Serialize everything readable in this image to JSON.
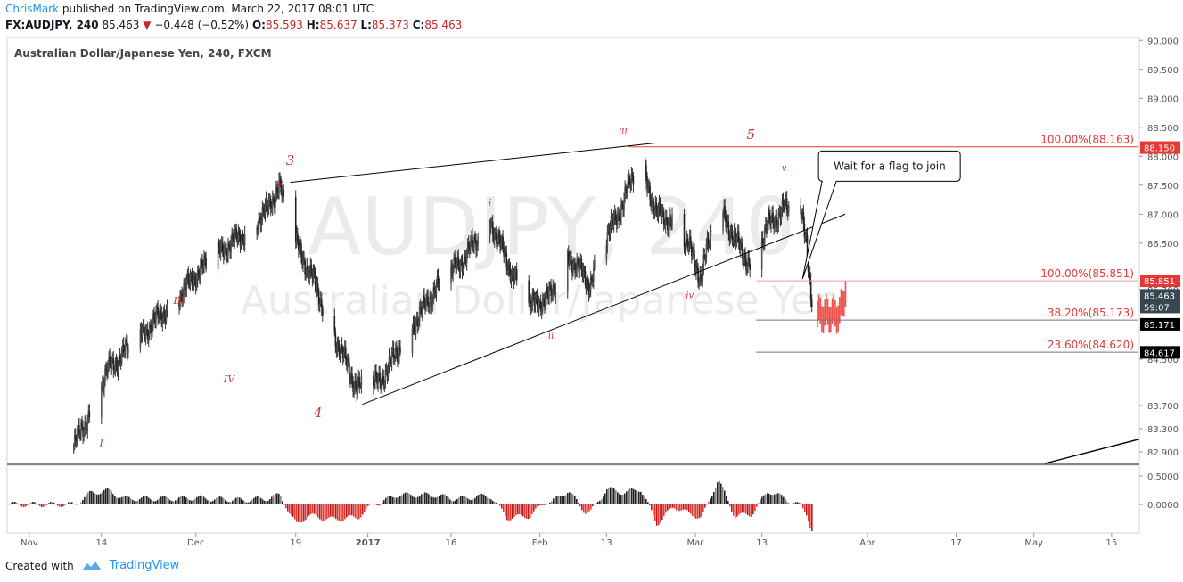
{
  "header": {
    "author": "ChrisMark",
    "published_text": "published on TradingView.com, March 22, 2017 08:01 UTC",
    "symbol": "FX:AUDJPY, 240",
    "last": "85.463",
    "change": "−0.448 (−0.52%)",
    "o_label": "O:",
    "o": "85.593",
    "h_label": "H:",
    "h": "85.637",
    "l_label": "L:",
    "l": "85.373",
    "c_label": "C:",
    "c": "85.463"
  },
  "footer": {
    "created_with": "Created with",
    "brand": "TradingView"
  },
  "chart_data": {
    "type": "candlestick",
    "title": "Australian Dollar/Japanese Yen, 240, FXCM",
    "watermark_symbol": "AUDJPY, 240",
    "watermark_name": "Australian Dollar/Japanese Yen",
    "ylim": [
      82.7,
      90.05
    ],
    "y_ticks": [
      "90.000",
      "89.500",
      "89.000",
      "88.500",
      "88.000",
      "87.500",
      "87.000",
      "86.500",
      "85.700",
      "84.500",
      "83.700",
      "83.300",
      "82.900"
    ],
    "x_ticks": [
      "Nov",
      "14",
      "Dec",
      "19",
      "2017",
      "16",
      "Feb",
      "13",
      "Mar",
      "13",
      "Apr",
      "17",
      "May",
      "15"
    ],
    "price_badges": [
      {
        "value": "88.150",
        "color": "#e53935"
      },
      {
        "value": "85.851",
        "color": "#e53935"
      },
      {
        "value": "85.463",
        "color": "#37474f"
      },
      {
        "value": "59:07",
        "color": "#37474f"
      },
      {
        "value": "85.171",
        "color": "#000000"
      },
      {
        "value": "84.617",
        "color": "#000000"
      }
    ],
    "fib_levels": [
      {
        "label": "100.00%(88.163)",
        "value": 88.163,
        "color": "#e53935"
      },
      {
        "label": "100.00%(85.851)",
        "value": 85.851,
        "color": "#ef9a9a"
      },
      {
        "label": "38.20%(85.173)",
        "value": 85.173,
        "color": "#757575"
      },
      {
        "label": "23.60%(84.620)",
        "value": 84.62,
        "color": "#757575"
      }
    ],
    "wave_labels": [
      {
        "text": "I",
        "x": "Nov 14",
        "y": 83.0
      },
      {
        "text": "III",
        "x": "Nov 28",
        "y": 85.45
      },
      {
        "text": "IV",
        "x": "Dec 7",
        "y": 84.1
      },
      {
        "text": "V",
        "x": "Dec 16",
        "y": 87.45
      },
      {
        "text": "3",
        "x": "Dec 18",
        "y": 87.85
      },
      {
        "text": "4",
        "x": "Dec 23",
        "y": 83.5
      },
      {
        "text": "i",
        "x": "Jan 23",
        "y": 87.15
      },
      {
        "text": "ii",
        "x": "Feb 3",
        "y": 84.85
      },
      {
        "text": "iii",
        "x": "Feb 16",
        "y": 88.4
      },
      {
        "text": "iv",
        "x": "Feb 28",
        "y": 85.55
      },
      {
        "text": "5",
        "x": "Mar 11",
        "y": 88.3
      },
      {
        "text": "v",
        "x": "Mar 17",
        "y": 87.75
      }
    ],
    "annotation": "Wait for a flag to join",
    "osc_ticks": [
      "0.5000",
      "0.0000"
    ]
  }
}
